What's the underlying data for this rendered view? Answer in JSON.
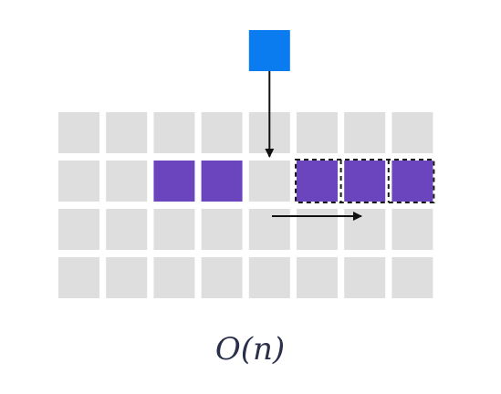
{
  "grid": {
    "rows": 4,
    "cols": 8,
    "cell_color": "#dedede",
    "filled_color": "#6b45bd",
    "filled_cells": [
      {
        "row": 1,
        "col": 2
      },
      {
        "row": 1,
        "col": 3
      }
    ],
    "shifted_cells": [
      {
        "row": 1,
        "col": 5
      },
      {
        "row": 1,
        "col": 6
      },
      {
        "row": 1,
        "col": 7
      }
    ],
    "empty_insert_cell": {
      "row": 1,
      "col": 4
    }
  },
  "incoming_element": {
    "color": "#0a7cf0",
    "target": {
      "row": 1,
      "col": 4
    }
  },
  "shift_arrow": {
    "direction": "right",
    "row": 2
  },
  "arrow_color": "#111111",
  "dash_outline_color": "#1a1a1a",
  "complexity_label": "O(n)"
}
